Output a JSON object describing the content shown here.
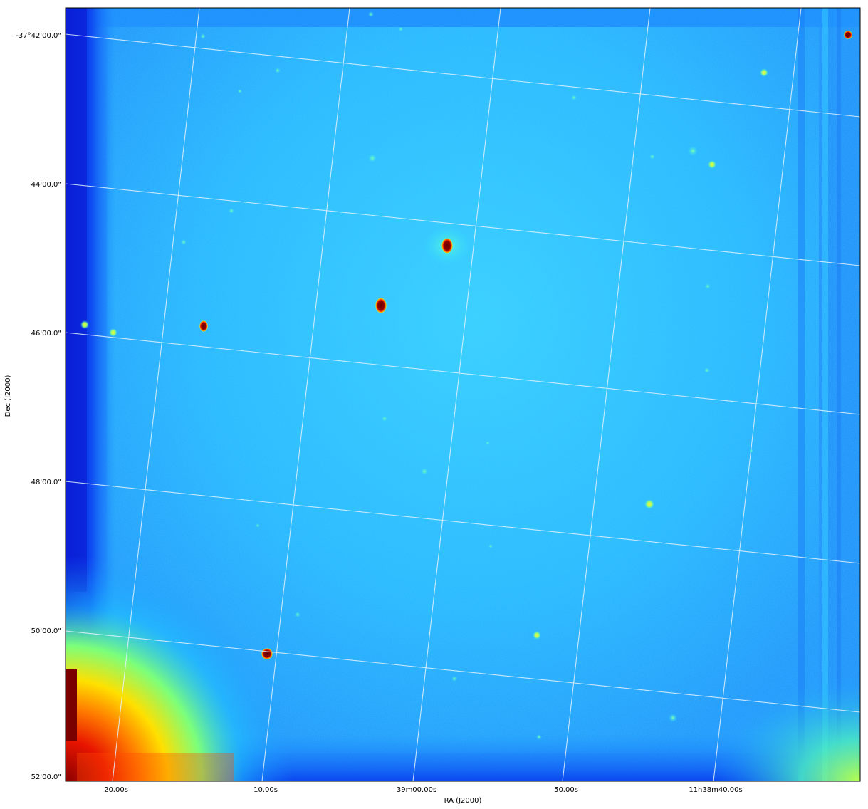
{
  "figure": {
    "x_axis_label": "RA (J2000)",
    "y_axis_label": "Dec (J2000)",
    "x_tick_labels": [
      "20.00s",
      "10.00s",
      "39m00.00s",
      "50.00s",
      "11h38m40.00s"
    ],
    "y_tick_labels": [
      "-37°42'00.0\"",
      "44'00.0\"",
      "46'00.0\"",
      "48'00.0\"",
      "50'00.0\"",
      "52'00.0\""
    ],
    "colormap": "jet",
    "grid": true,
    "colors": {
      "background_field": "#1aa6ff",
      "inner_field": "#29c3ff",
      "edge_dark": "#0a28e0",
      "source_core": "#7a0000",
      "corner_hot": "#ff5a00",
      "grid_line": "#d8ecff"
    }
  }
}
